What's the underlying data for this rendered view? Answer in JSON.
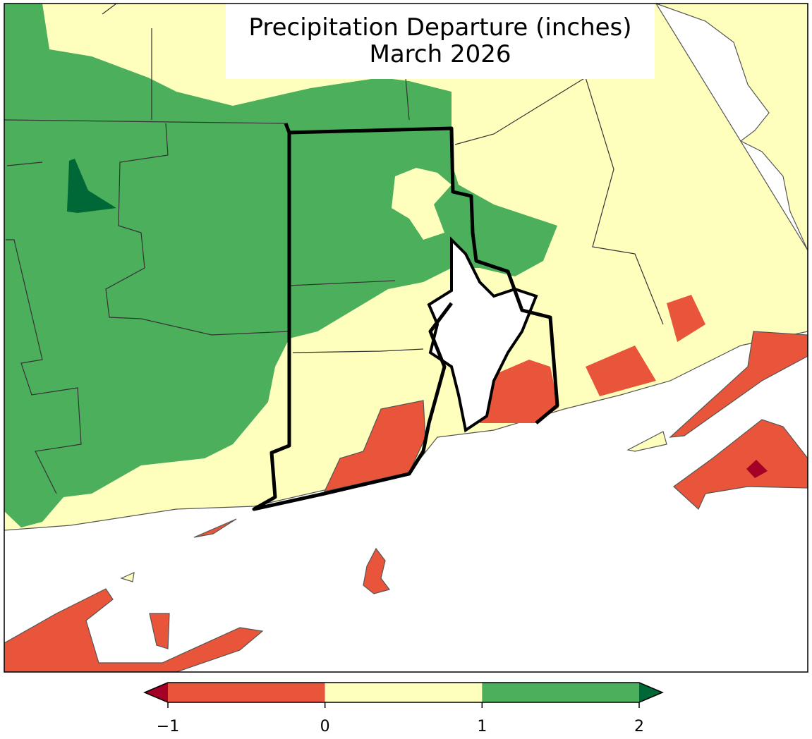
{
  "map": {
    "title": "Precipitation Departure (inches)",
    "subtitle": "March 2026",
    "colorbar": {
      "range": [
        -1,
        2
      ],
      "ticks": [
        {
          "value": -1,
          "label": "−1"
        },
        0,
        1,
        2
      ],
      "colors": [
        "#e8553a",
        "#fefebd",
        "#4caf5c"
      ],
      "extend_colors": [
        "#a50026",
        "#006837"
      ]
    }
  }
}
